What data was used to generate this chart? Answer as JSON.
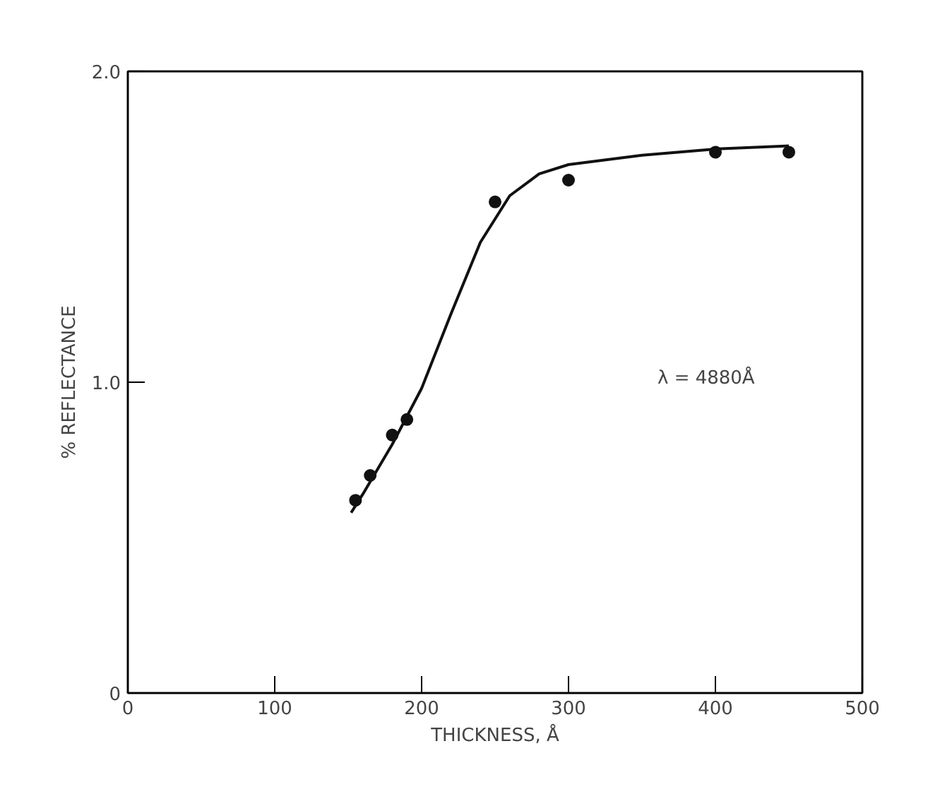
{
  "chart_data": {
    "type": "scatter",
    "xlabel": "THICKNESS, Å",
    "ylabel": "% REFLECTANCE",
    "xlim": [
      0,
      500
    ],
    "ylim": [
      0,
      2.0
    ],
    "xticks": [
      0,
      100,
      200,
      300,
      400,
      500
    ],
    "yticks": [
      0,
      {
        "value": 1.0,
        "label": "1.0"
      },
      {
        "value": 2.0,
        "label": "2.0"
      }
    ],
    "grid": false,
    "annotations": [
      "λ = 4880Å"
    ],
    "series": [
      {
        "marker": "circle",
        "color": "#111111",
        "x": [
          155,
          165,
          180,
          190,
          250,
          300,
          400,
          450
        ],
        "values": [
          0.62,
          0.7,
          0.83,
          0.88,
          1.58,
          1.65,
          1.74,
          1.74
        ]
      },
      {
        "type": "line",
        "line_style": "solid",
        "color": "#111111",
        "x": [
          152,
          160,
          180,
          200,
          220,
          240,
          260,
          280,
          300,
          350,
          400,
          450
        ],
        "values": [
          0.58,
          0.64,
          0.8,
          0.98,
          1.22,
          1.45,
          1.6,
          1.67,
          1.7,
          1.73,
          1.75,
          1.76
        ]
      }
    ]
  }
}
